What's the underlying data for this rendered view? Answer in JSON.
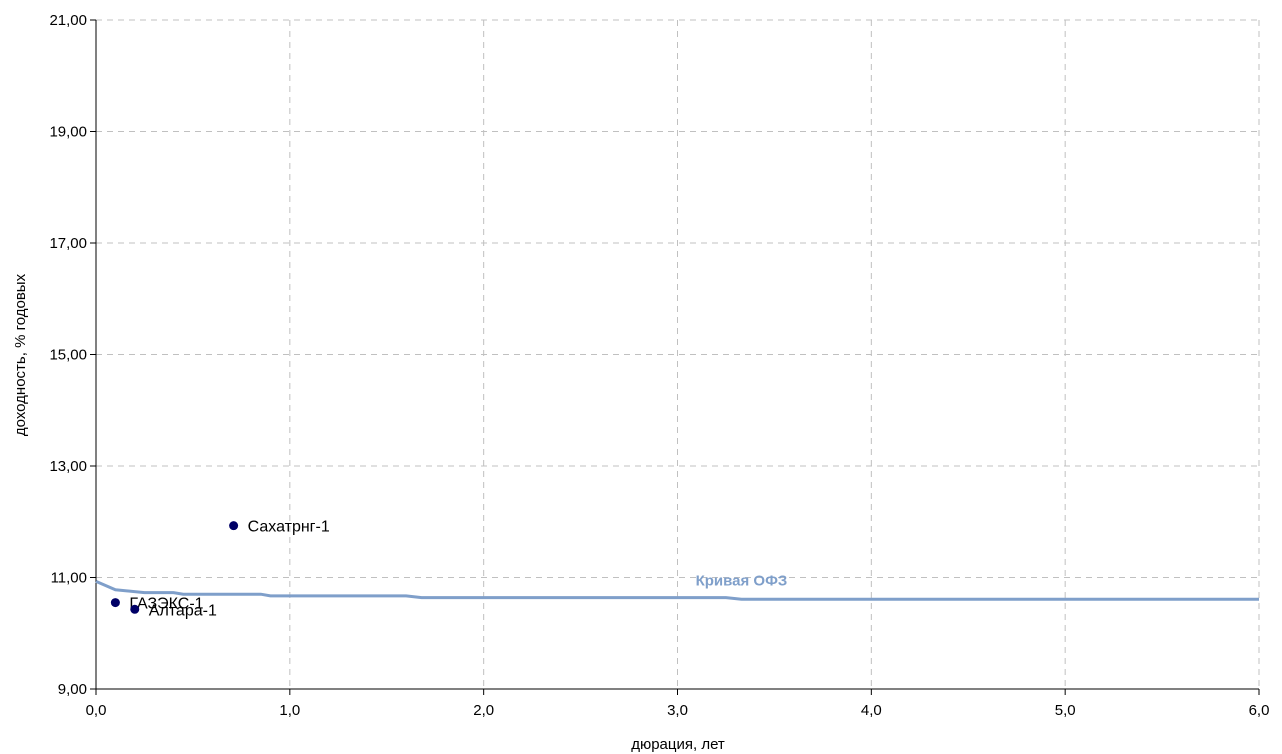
{
  "chart_data": {
    "type": "scatter",
    "title": "",
    "xlabel": "дюрация, лет",
    "ylabel": "доходность, % годовых",
    "xlim": [
      0,
      6
    ],
    "ylim": [
      9,
      21
    ],
    "grid": true,
    "x_ticks": [
      0,
      1,
      2,
      3,
      4,
      5,
      6
    ],
    "x_tick_labels": [
      "0,0",
      "1,0",
      "2,0",
      "3,0",
      "4,0",
      "5,0",
      "6,0"
    ],
    "y_ticks": [
      9,
      11,
      13,
      15,
      17,
      19,
      21
    ],
    "y_tick_labels": [
      "9,00",
      "11,00",
      "13,00",
      "15,00",
      "17,00",
      "19,00",
      "21,00"
    ],
    "series": [
      {
        "kind": "scatter",
        "color": "#000066",
        "points": [
          {
            "label": "Сахатрнг-1",
            "x": 0.71,
            "y": 11.93
          },
          {
            "label": "ГАЗЭКС-1",
            "x": 0.1,
            "y": 10.55
          },
          {
            "label": "Алтара-1",
            "x": 0.2,
            "y": 10.43
          }
        ]
      },
      {
        "kind": "line",
        "name": "Кривая ОФЗ",
        "color": "#7F9FCA",
        "x": [
          0,
          0.1,
          0.25,
          0.4,
          0.45,
          0.85,
          0.9,
          1.6,
          1.68,
          3.25,
          3.33,
          6.0
        ],
        "y": [
          10.93,
          10.78,
          10.73,
          10.73,
          10.7,
          10.7,
          10.67,
          10.67,
          10.64,
          10.64,
          10.61,
          10.61
        ]
      }
    ]
  }
}
